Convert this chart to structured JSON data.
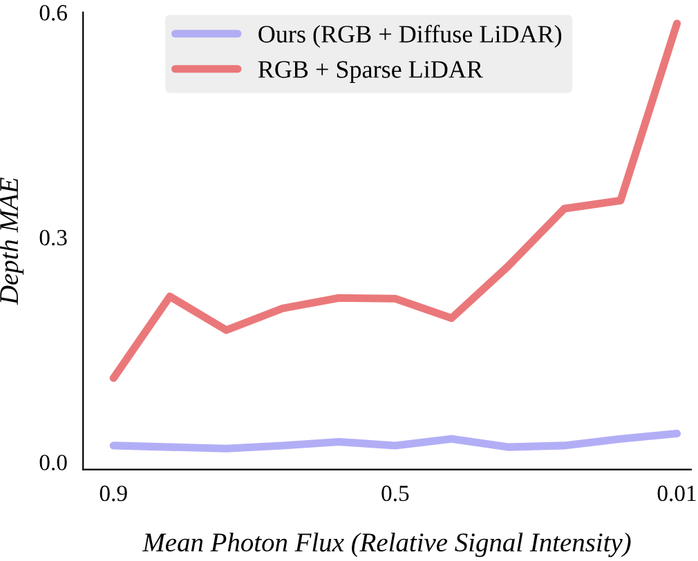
{
  "chart_data": {
    "type": "line",
    "xlabel": "Mean Photon Flux (Relative Signal Intensity)",
    "ylabel": "Depth MAE",
    "categories": [
      "0.9",
      null,
      null,
      null,
      null,
      "0.5",
      null,
      null,
      null,
      null,
      "0.01"
    ],
    "series": [
      {
        "name": "Ours (RGB + Diffuse LiDAR)",
        "color": "#aaa5f5",
        "values": [
          0.022,
          0.02,
          0.018,
          0.022,
          0.027,
          0.022,
          0.031,
          0.02,
          0.022,
          0.031,
          0.038
        ]
      },
      {
        "name": "RGB + Sparse LiDAR",
        "color": "#e8696b",
        "values": [
          0.112,
          0.221,
          0.176,
          0.205,
          0.219,
          0.218,
          0.192,
          0.261,
          0.338,
          0.349,
          0.585
        ]
      }
    ],
    "ylim": [
      -0.01,
      0.6
    ],
    "yticks": [
      {
        "value": 0,
        "label": "0.0"
      },
      {
        "value": 0.3,
        "label": "0.3"
      },
      {
        "value": 0.6,
        "label": "0.6"
      }
    ],
    "grid": false,
    "legend": "top",
    "marker": "none",
    "line_style": "solid"
  }
}
